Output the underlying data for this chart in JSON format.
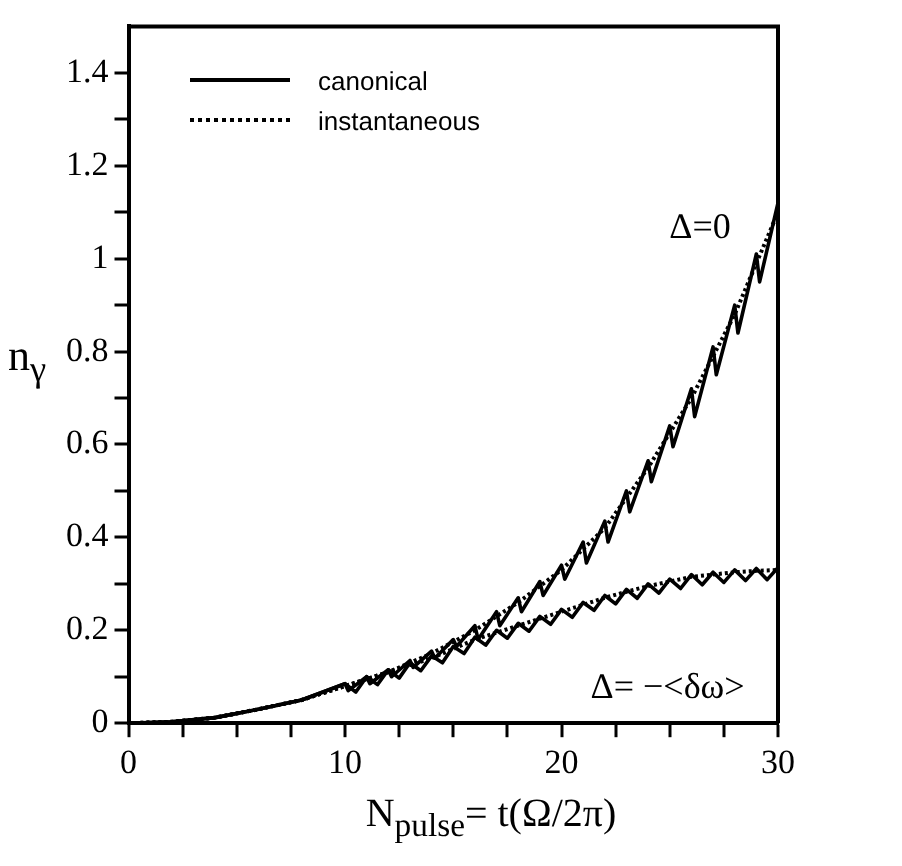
{
  "chart_data": {
    "type": "line",
    "xlabel": "N$_{pulse}$= t(Ω/2π)",
    "ylabel": "n$_{γ}$",
    "xlim": [
      0,
      30
    ],
    "ylim": [
      0,
      1.5
    ],
    "xticks": [
      0,
      {
        "value": 2.5,
        "label": null
      },
      {
        "value": 5,
        "label": null
      },
      {
        "value": 7.5,
        "label": null
      },
      10,
      {
        "value": 12.5,
        "label": null
      },
      {
        "value": 15,
        "label": null
      },
      {
        "value": 17.5,
        "label": null
      },
      20,
      {
        "value": 22.5,
        "label": null
      },
      {
        "value": 25,
        "label": null
      },
      {
        "value": 27.5,
        "label": null
      },
      30
    ],
    "yticks": [
      0,
      {
        "value": 0.1,
        "label": null
      },
      0.2,
      {
        "value": 0.3,
        "label": null
      },
      0.4,
      {
        "value": 0.5,
        "label": null
      },
      0.6,
      {
        "value": 0.7,
        "label": null
      },
      0.8,
      {
        "value": 0.9,
        "label": null
      },
      1,
      {
        "value": 1.1,
        "label": null
      },
      1.2,
      {
        "value": 1.3,
        "label": null
      },
      1.4
    ],
    "grid": false,
    "legend": "top left",
    "marker": "none",
    "annotations": [
      "Δ=0",
      "Δ= −<δω>"
    ],
    "series": [
      {
        "name": "canonical",
        "color": "#000000",
        "line_style": "solid",
        "x": [
          0,
          2,
          4,
          6,
          8,
          10,
          10.15,
          11,
          11.15,
          12,
          12.15,
          13,
          13.15,
          14,
          14.15,
          15,
          15.15,
          16,
          16.15,
          17,
          17.15,
          18,
          18.15,
          19,
          19.15,
          20,
          20.15,
          21,
          21.15,
          22,
          22.15,
          23,
          23.15,
          24,
          24.15,
          25,
          25.15,
          26,
          26.15,
          27,
          27.15,
          28,
          28.15,
          29,
          29.15,
          30
        ],
        "values": [
          0,
          0.003,
          0.012,
          0.03,
          0.05,
          0.085,
          0.07,
          0.1,
          0.085,
          0.115,
          0.1,
          0.135,
          0.12,
          0.155,
          0.14,
          0.18,
          0.165,
          0.21,
          0.18,
          0.24,
          0.21,
          0.27,
          0.24,
          0.305,
          0.275,
          0.34,
          0.31,
          0.39,
          0.345,
          0.435,
          0.39,
          0.5,
          0.455,
          0.565,
          0.52,
          0.64,
          0.595,
          0.72,
          0.66,
          0.81,
          0.75,
          0.9,
          0.84,
          1.01,
          0.95,
          1.12
        ]
      },
      {
        "name": "instantaneous",
        "color": "#000000",
        "line_style": "dotted",
        "x": [
          0,
          2,
          4,
          6,
          8,
          10,
          11,
          12,
          13,
          14,
          15,
          16,
          17,
          18,
          19,
          20,
          21,
          22,
          23,
          24,
          25,
          26,
          27,
          28,
          29,
          30
        ],
        "values": [
          0,
          0.003,
          0.012,
          0.03,
          0.05,
          0.08,
          0.095,
          0.11,
          0.13,
          0.15,
          0.175,
          0.2,
          0.23,
          0.26,
          0.295,
          0.33,
          0.375,
          0.42,
          0.485,
          0.55,
          0.625,
          0.7,
          0.79,
          0.88,
          0.99,
          1.1
        ]
      },
      {
        "color": "#000000",
        "line_style": "solid",
        "x": [
          0,
          2,
          4,
          6,
          8,
          10,
          10.5,
          11,
          11.5,
          12,
          12.5,
          13,
          13.5,
          14,
          14.5,
          15,
          15.5,
          16,
          16.5,
          17,
          17.5,
          18,
          18.5,
          19,
          19.5,
          20,
          20.5,
          21,
          21.5,
          22,
          22.5,
          23,
          23.5,
          24,
          24.5,
          25,
          25.5,
          26,
          26.5,
          27,
          27.5,
          28,
          28.5,
          29,
          29.5,
          30
        ],
        "values": [
          0,
          0.003,
          0.012,
          0.03,
          0.05,
          0.085,
          0.067,
          0.1,
          0.083,
          0.115,
          0.097,
          0.13,
          0.113,
          0.145,
          0.13,
          0.165,
          0.15,
          0.185,
          0.168,
          0.2,
          0.183,
          0.215,
          0.198,
          0.23,
          0.213,
          0.245,
          0.228,
          0.26,
          0.243,
          0.275,
          0.257,
          0.288,
          0.269,
          0.3,
          0.28,
          0.31,
          0.29,
          0.32,
          0.298,
          0.325,
          0.303,
          0.33,
          0.307,
          0.333,
          0.309,
          0.335
        ]
      },
      {
        "color": "#000000",
        "line_style": "dotted",
        "x": [
          0,
          2,
          4,
          6,
          8,
          10,
          11,
          12,
          13,
          14,
          15,
          16,
          17,
          18,
          19,
          20,
          21,
          22,
          23,
          24,
          25,
          26,
          27,
          28,
          29,
          30
        ],
        "values": [
          0,
          0.003,
          0.012,
          0.03,
          0.05,
          0.08,
          0.095,
          0.11,
          0.125,
          0.14,
          0.16,
          0.18,
          0.195,
          0.21,
          0.225,
          0.24,
          0.255,
          0.27,
          0.283,
          0.295,
          0.305,
          0.315,
          0.32,
          0.325,
          0.328,
          0.33
        ]
      }
    ]
  }
}
